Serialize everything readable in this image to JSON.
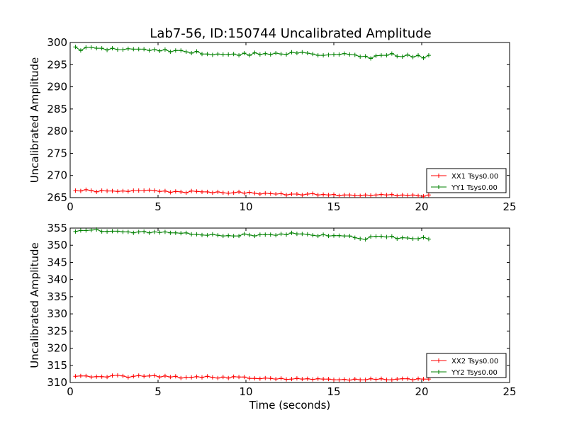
{
  "figure": {
    "title": "Lab7-56, ID:150744 Uncalibrated Amplitude"
  },
  "chart_data": [
    {
      "type": "line",
      "title": "Lab7-56, ID:150744 Uncalibrated Amplitude",
      "xlabel": "",
      "ylabel": "Uncalibrated Amplitude",
      "xlim": [
        0,
        25
      ],
      "ylim": [
        265,
        300
      ],
      "xticks": [
        "0",
        "5",
        "10",
        "15",
        "20",
        "25"
      ],
      "yticks": [
        "265",
        "270",
        "275",
        "280",
        "285",
        "290",
        "295",
        "300"
      ],
      "grid": false,
      "legend_position": "lower-right",
      "x": [
        0.3,
        0.6,
        0.9,
        1.2,
        1.5,
        1.8,
        2.1,
        2.4,
        2.7,
        3.0,
        3.3,
        3.6,
        3.9,
        4.2,
        4.5,
        4.8,
        5.1,
        5.4,
        5.7,
        6.0,
        6.3,
        6.6,
        6.9,
        7.2,
        7.5,
        7.8,
        8.1,
        8.4,
        8.7,
        9.0,
        9.3,
        9.6,
        9.9,
        10.2,
        10.5,
        10.8,
        11.1,
        11.4,
        11.7,
        12.0,
        12.3,
        12.6,
        12.9,
        13.2,
        13.5,
        13.8,
        14.1,
        14.4,
        14.7,
        15.0,
        15.3,
        15.6,
        15.9,
        16.2,
        16.5,
        16.8,
        17.1,
        17.4,
        17.7,
        18.0,
        18.3,
        18.6,
        18.9,
        19.2,
        19.5,
        19.8,
        20.1,
        20.4
      ],
      "series": [
        {
          "name": "XX1 Tsys0.00",
          "color": "#ff0000",
          "values": [
            266.6,
            266.5,
            266.8,
            266.6,
            266.3,
            266.6,
            266.5,
            266.5,
            266.4,
            266.5,
            266.4,
            266.6,
            266.6,
            266.6,
            266.7,
            266.6,
            266.4,
            266.5,
            266.2,
            266.4,
            266.3,
            266.1,
            266.5,
            266.4,
            266.3,
            266.3,
            266.1,
            266.3,
            266.1,
            266.0,
            266.1,
            266.3,
            266.0,
            266.2,
            266.0,
            265.8,
            266.0,
            265.9,
            265.8,
            265.9,
            265.6,
            265.8,
            265.8,
            265.6,
            265.8,
            265.9,
            265.6,
            265.7,
            265.6,
            265.7,
            265.4,
            265.6,
            265.6,
            265.5,
            265.4,
            265.6,
            265.5,
            265.6,
            265.7,
            265.6,
            265.7,
            265.4,
            265.6,
            265.5,
            265.6,
            265.4,
            265.3,
            265.6
          ]
        },
        {
          "name": "YY1 Tsys0.00",
          "color": "#008000",
          "values": [
            299.0,
            298.2,
            298.9,
            298.9,
            298.7,
            298.7,
            298.3,
            298.7,
            298.4,
            298.4,
            298.6,
            298.5,
            298.5,
            298.5,
            298.2,
            298.4,
            298.1,
            298.4,
            297.9,
            298.2,
            298.2,
            297.9,
            297.6,
            298.0,
            297.4,
            297.4,
            297.2,
            297.4,
            297.3,
            297.3,
            297.4,
            297.1,
            297.6,
            297.1,
            297.7,
            297.3,
            297.5,
            297.3,
            297.6,
            297.4,
            297.3,
            297.8,
            297.6,
            297.8,
            297.6,
            297.4,
            297.1,
            297.1,
            297.2,
            297.3,
            297.3,
            297.5,
            297.3,
            297.2,
            296.8,
            296.9,
            296.4,
            297.0,
            297.1,
            297.1,
            297.5,
            296.9,
            296.8,
            297.2,
            296.7,
            297.1,
            296.5,
            297.1
          ]
        }
      ]
    },
    {
      "type": "line",
      "title": "",
      "xlabel": "Time (seconds)",
      "ylabel": "Uncalibrated Amplitude",
      "xlim": [
        0,
        25
      ],
      "ylim": [
        310,
        355
      ],
      "xticks": [
        "0",
        "5",
        "10",
        "15",
        "20",
        "25"
      ],
      "yticks": [
        "310",
        "315",
        "320",
        "325",
        "330",
        "335",
        "340",
        "345",
        "350",
        "355"
      ],
      "grid": false,
      "legend_position": "lower-right",
      "x": [
        0.3,
        0.6,
        0.9,
        1.2,
        1.5,
        1.8,
        2.1,
        2.4,
        2.7,
        3.0,
        3.3,
        3.6,
        3.9,
        4.2,
        4.5,
        4.8,
        5.1,
        5.4,
        5.7,
        6.0,
        6.3,
        6.6,
        6.9,
        7.2,
        7.5,
        7.8,
        8.1,
        8.4,
        8.7,
        9.0,
        9.3,
        9.6,
        9.9,
        10.2,
        10.5,
        10.8,
        11.1,
        11.4,
        11.7,
        12.0,
        12.3,
        12.6,
        12.9,
        13.2,
        13.5,
        13.8,
        14.1,
        14.4,
        14.7,
        15.0,
        15.3,
        15.6,
        15.9,
        16.2,
        16.5,
        16.8,
        17.1,
        17.4,
        17.7,
        18.0,
        18.3,
        18.6,
        18.9,
        19.2,
        19.5,
        19.8,
        20.1,
        20.4
      ],
      "series": [
        {
          "name": "XX2 Tsys0.00",
          "color": "#ff0000",
          "values": [
            311.8,
            311.9,
            311.9,
            311.6,
            311.7,
            311.7,
            311.6,
            312.0,
            312.1,
            311.9,
            311.5,
            311.8,
            312.0,
            311.8,
            311.9,
            312.0,
            311.6,
            311.9,
            311.6,
            311.8,
            311.3,
            311.5,
            311.5,
            311.7,
            311.5,
            311.8,
            311.5,
            311.3,
            311.6,
            311.3,
            311.7,
            311.6,
            311.6,
            311.2,
            311.2,
            311.1,
            311.3,
            311.2,
            311.0,
            311.2,
            310.9,
            311.0,
            311.2,
            311.0,
            311.1,
            310.9,
            311.1,
            311.0,
            311.0,
            310.8,
            310.8,
            310.9,
            310.7,
            311.0,
            310.8,
            310.8,
            311.1,
            310.9,
            311.1,
            310.8,
            310.8,
            311.0,
            311.1,
            311.1,
            310.8,
            311.1,
            311.0,
            311.0
          ]
        },
        {
          "name": "YY2 Tsys0.00",
          "color": "#008000",
          "values": [
            354.0,
            354.3,
            354.3,
            354.4,
            354.6,
            354.0,
            354.0,
            354.1,
            354.1,
            353.9,
            353.9,
            353.6,
            353.9,
            354.0,
            353.6,
            353.9,
            353.7,
            353.9,
            353.6,
            353.6,
            353.5,
            353.6,
            353.2,
            353.2,
            353.0,
            352.9,
            353.2,
            352.9,
            352.7,
            352.8,
            352.7,
            352.7,
            353.3,
            353.0,
            352.7,
            353.1,
            353.1,
            353.1,
            352.9,
            353.3,
            353.1,
            353.6,
            353.3,
            353.3,
            353.2,
            352.9,
            352.7,
            353.1,
            352.7,
            352.8,
            352.8,
            352.7,
            352.7,
            352.2,
            351.9,
            351.7,
            352.5,
            352.6,
            352.6,
            352.4,
            352.6,
            351.9,
            352.2,
            352.1,
            351.9,
            351.9,
            352.3,
            351.8
          ]
        }
      ]
    }
  ]
}
